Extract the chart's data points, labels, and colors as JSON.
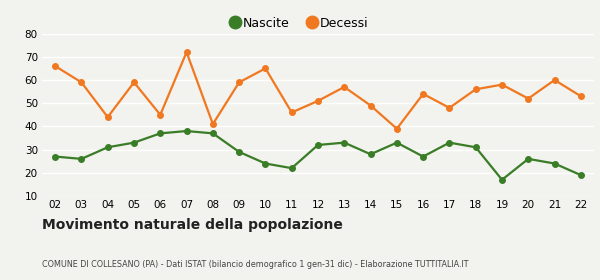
{
  "years": [
    "02",
    "03",
    "04",
    "05",
    "06",
    "07",
    "08",
    "09",
    "10",
    "11",
    "12",
    "13",
    "14",
    "15",
    "16",
    "17",
    "18",
    "19",
    "20",
    "21",
    "22"
  ],
  "nascite": [
    27,
    26,
    31,
    33,
    37,
    38,
    37,
    29,
    24,
    22,
    32,
    33,
    28,
    33,
    27,
    33,
    31,
    17,
    26,
    24,
    19
  ],
  "decessi": [
    66,
    59,
    44,
    59,
    45,
    72,
    41,
    59,
    65,
    46,
    51,
    57,
    49,
    39,
    54,
    48,
    56,
    58,
    52,
    60,
    53
  ],
  "nascite_color": "#3a7d27",
  "decessi_color": "#f07820",
  "bg_color": "#f2f2ee",
  "grid_color": "#ffffff",
  "title": "Movimento naturale della popolazione",
  "subtitle": "COMUNE DI COLLESANO (PA) - Dati ISTAT (bilancio demografico 1 gen-31 dic) - Elaborazione TUTTITALIA.IT",
  "legend_nascite": "Nascite",
  "legend_decessi": "Decessi",
  "ylim": [
    10,
    80
  ],
  "yticks": [
    10,
    20,
    30,
    40,
    50,
    60,
    70,
    80
  ],
  "marker_size": 4,
  "line_width": 1.6
}
